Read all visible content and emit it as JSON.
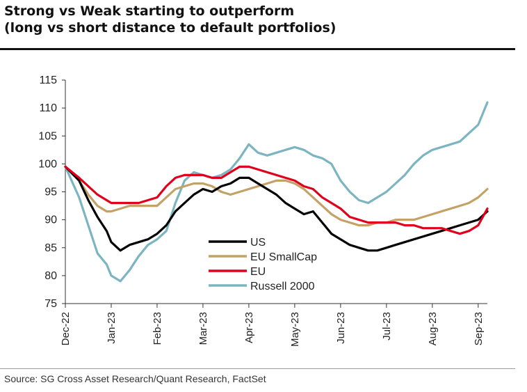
{
  "header": {
    "title_line1": "Strong vs Weak starting to outperform",
    "title_line2": "(long vs short distance to default portfolios)"
  },
  "footer": {
    "source": "Source: SG Cross Asset Research/Quant Research, FactSet"
  },
  "chart_data": {
    "type": "line",
    "title": "Strong vs Weak starting to outperform (long vs short distance to default portfolios)",
    "xlabel": "",
    "ylabel": "",
    "ylim": [
      75,
      115
    ],
    "yticks": [
      75,
      80,
      85,
      90,
      95,
      100,
      105,
      110,
      115
    ],
    "xticks": [
      "Dec-22",
      "Jan-23",
      "Feb-23",
      "Mar-23",
      "Apr-23",
      "May-23",
      "Jun-23",
      "Jul-23",
      "Aug-23",
      "Sep-23"
    ],
    "x_months": [
      0,
      1,
      2,
      3,
      4,
      5,
      6,
      7,
      8,
      9
    ],
    "legend_position": "center",
    "series": [
      {
        "name": "US",
        "color": "#000000",
        "x": [
          0.0,
          0.3,
          0.5,
          0.7,
          0.9,
          1.0,
          1.2,
          1.4,
          1.6,
          1.8,
          2.0,
          2.2,
          2.4,
          2.6,
          2.8,
          3.0,
          3.2,
          3.4,
          3.6,
          3.8,
          4.0,
          4.2,
          4.4,
          4.6,
          4.8,
          5.0,
          5.2,
          5.4,
          5.6,
          5.8,
          6.0,
          6.2,
          6.4,
          6.6,
          6.8,
          7.0,
          7.2,
          7.4,
          7.6,
          7.8,
          8.0,
          8.2,
          8.4,
          8.6,
          8.8,
          9.0,
          9.2
        ],
        "y": [
          99.5,
          97,
          93.5,
          90.5,
          88,
          86,
          84.5,
          85.5,
          86,
          86.5,
          87.5,
          89,
          91.5,
          93,
          94.5,
          95.5,
          95,
          96,
          96.5,
          97.5,
          97.5,
          96.5,
          95.5,
          94.5,
          93,
          92,
          91,
          91.5,
          89.5,
          87.5,
          86.5,
          85.5,
          85,
          84.5,
          84.5,
          85,
          85.5,
          86,
          86.5,
          87,
          87.5,
          88,
          88.5,
          89,
          89.5,
          90,
          91.5
        ]
      },
      {
        "name": "EU SmallCap",
        "color": "#c4a164",
        "x": [
          0.0,
          0.3,
          0.5,
          0.7,
          0.9,
          1.0,
          1.2,
          1.4,
          1.6,
          1.8,
          2.0,
          2.2,
          2.4,
          2.6,
          2.8,
          3.0,
          3.2,
          3.4,
          3.6,
          3.8,
          4.0,
          4.2,
          4.4,
          4.6,
          4.8,
          5.0,
          5.2,
          5.4,
          5.6,
          5.8,
          6.0,
          6.2,
          6.4,
          6.6,
          6.8,
          7.0,
          7.2,
          7.4,
          7.6,
          7.8,
          8.0,
          8.2,
          8.4,
          8.6,
          8.8,
          9.0,
          9.2
        ],
        "y": [
          99.5,
          97,
          94.5,
          92.5,
          91.5,
          91.5,
          92,
          92.5,
          92.5,
          92.5,
          92.5,
          94,
          95.5,
          96,
          96.5,
          96.5,
          96,
          95,
          94.5,
          95,
          95.5,
          96,
          96.5,
          97,
          97,
          96.5,
          95.5,
          94,
          92.5,
          91,
          90,
          89.5,
          89,
          89,
          89.5,
          89.5,
          90,
          90,
          90,
          90.5,
          91,
          91.5,
          92,
          92.5,
          93,
          94,
          95.5
        ]
      },
      {
        "name": "EU",
        "color": "#e0001b",
        "x": [
          0.0,
          0.3,
          0.5,
          0.7,
          0.9,
          1.0,
          1.2,
          1.4,
          1.6,
          1.8,
          2.0,
          2.2,
          2.4,
          2.6,
          2.8,
          3.0,
          3.2,
          3.4,
          3.6,
          3.8,
          4.0,
          4.2,
          4.4,
          4.6,
          4.8,
          5.0,
          5.2,
          5.4,
          5.6,
          5.8,
          6.0,
          6.2,
          6.4,
          6.6,
          6.8,
          7.0,
          7.2,
          7.4,
          7.6,
          7.8,
          8.0,
          8.2,
          8.4,
          8.6,
          8.8,
          9.0,
          9.2
        ],
        "y": [
          99.5,
          97.5,
          96,
          94.5,
          93.5,
          93,
          93,
          93,
          93,
          93.5,
          94,
          96,
          97.5,
          98,
          98,
          98,
          97.5,
          97.5,
          98.5,
          99.5,
          99.5,
          99,
          98.5,
          98,
          97.5,
          97,
          96,
          95.5,
          94,
          93,
          92,
          90.5,
          90,
          89.5,
          89.5,
          89.5,
          89.5,
          89,
          89,
          88.5,
          88.5,
          88.5,
          88,
          87.5,
          88,
          89,
          92
        ]
      },
      {
        "name": "Russell 2000",
        "color": "#7bb5c1",
        "x": [
          0.0,
          0.3,
          0.5,
          0.7,
          0.9,
          1.0,
          1.2,
          1.4,
          1.6,
          1.8,
          2.0,
          2.2,
          2.4,
          2.6,
          2.8,
          3.0,
          3.2,
          3.4,
          3.6,
          3.8,
          4.0,
          4.2,
          4.4,
          4.6,
          4.8,
          5.0,
          5.2,
          5.4,
          5.6,
          5.8,
          6.0,
          6.2,
          6.4,
          6.6,
          6.8,
          7.0,
          7.2,
          7.4,
          7.6,
          7.8,
          8.0,
          8.2,
          8.4,
          8.6,
          8.8,
          9.0,
          9.2
        ],
        "y": [
          99.5,
          94,
          89,
          84,
          82,
          80,
          79,
          81,
          83.5,
          85.5,
          86.5,
          88,
          93,
          97,
          98.5,
          98,
          97.5,
          98,
          99,
          101,
          103.5,
          102,
          101.5,
          102,
          102.5,
          103,
          102.5,
          101.5,
          101,
          100,
          97,
          95,
          93.5,
          93,
          94,
          95,
          96.5,
          98,
          100,
          101.5,
          102.5,
          103,
          103.5,
          104,
          105.5,
          107,
          111
        ]
      }
    ]
  }
}
